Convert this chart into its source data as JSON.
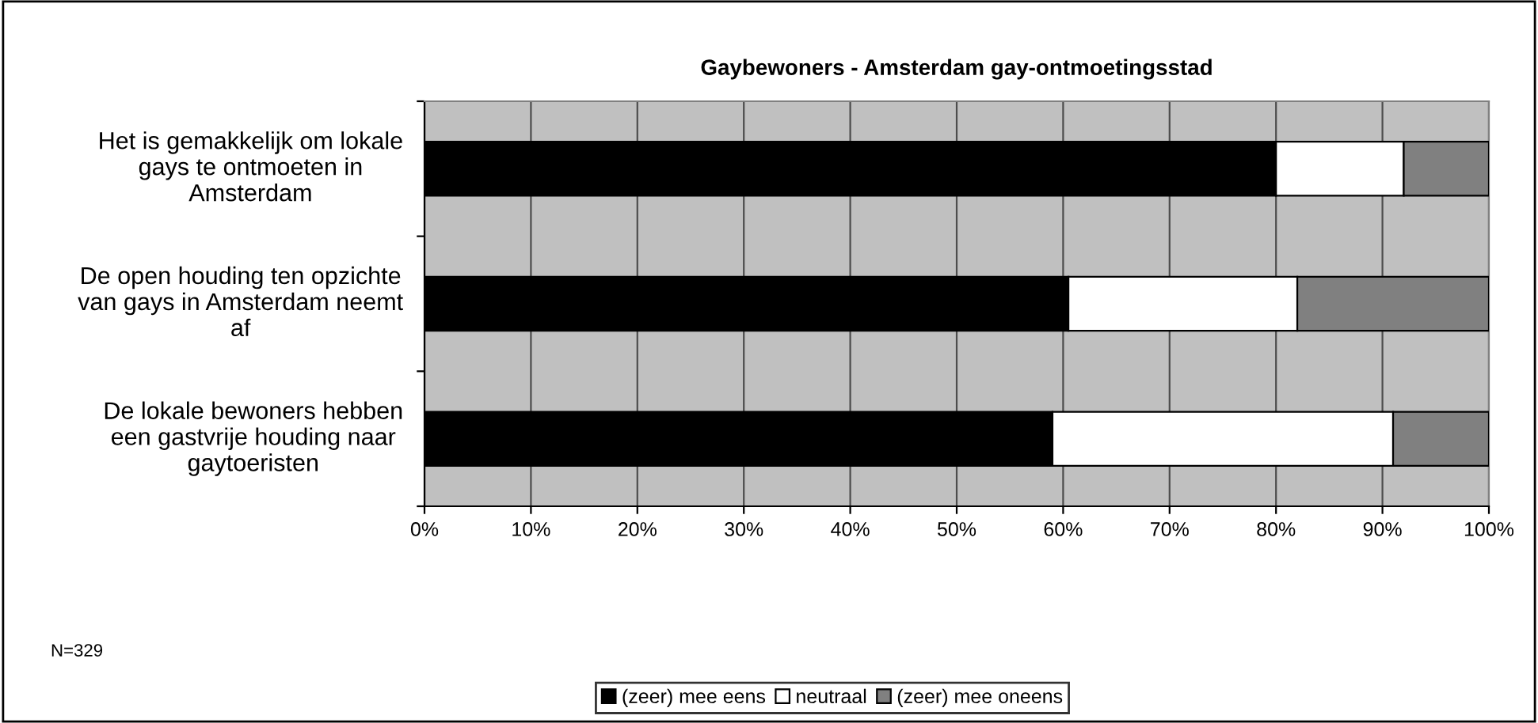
{
  "chart_data": {
    "type": "bar",
    "orientation": "horizontal",
    "stacked": true,
    "title": "Gaybewoners - Amsterdam gay-ontmoetingsstad",
    "categories": [
      "Het is gemakkelijk om lokale gays te ontmoeten in Amsterdam",
      "De open houding ten opzichte van gays in Amsterdam neemt af",
      "De lokale bewoners hebben een gastvrije houding naar gaytoeristen"
    ],
    "series": [
      {
        "name": "(zeer) mee eens",
        "color": "#000000",
        "values": [
          80,
          60.5,
          59
        ]
      },
      {
        "name": "neutraal",
        "color": "#ffffff",
        "values": [
          12,
          21.5,
          32
        ]
      },
      {
        "name": "(zeer) mee oneens",
        "color": "#808080",
        "values": [
          8,
          18,
          9
        ]
      }
    ],
    "xlim": [
      0,
      100
    ],
    "xticks": [
      {
        "value": 0,
        "label": "0%"
      },
      {
        "value": 10,
        "label": "10%"
      },
      {
        "value": 20,
        "label": "20%"
      },
      {
        "value": 30,
        "label": "30%"
      },
      {
        "value": 40,
        "label": "40%"
      },
      {
        "value": 50,
        "label": "50%"
      },
      {
        "value": 60,
        "label": "60%"
      },
      {
        "value": 70,
        "label": "70%"
      },
      {
        "value": 80,
        "label": "80%"
      },
      {
        "value": 90,
        "label": "90%"
      },
      {
        "value": 100,
        "label": "100%"
      }
    ],
    "grid": "x",
    "legend": "bottom",
    "annotations": [
      "N=329"
    ]
  }
}
